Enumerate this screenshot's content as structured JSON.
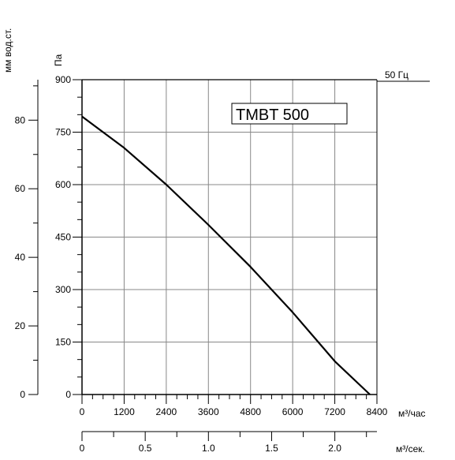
{
  "chart_data": {
    "type": "line",
    "title": "TMBT 500",
    "frequency_label": "50 Гц",
    "x_unit_primary": "м³/час",
    "x_unit_secondary": "м³/сек.",
    "y_unit_left": "мм вод.ст.",
    "y_unit_right": "Па",
    "x_ticks": [
      "0",
      "1200",
      "2400",
      "3600",
      "4800",
      "6000",
      "7200",
      "8400"
    ],
    "x_range": [
      0,
      8400
    ],
    "x2_ticks": [
      "0",
      "0.5",
      "1.0",
      "1.5",
      "2.0"
    ],
    "x2_range": [
      0,
      2.333
    ],
    "y_ticks": [
      "0",
      "150",
      "300",
      "450",
      "600",
      "750",
      "900"
    ],
    "y_range": [
      0,
      900
    ],
    "y2_ticks": [
      "0",
      "20",
      "40",
      "60",
      "80"
    ],
    "y2_range": [
      0,
      91.8
    ],
    "grid": true,
    "series": [
      {
        "x": [
          0,
          1200,
          2400,
          3600,
          4800,
          6000,
          7200,
          8200
        ],
        "y": [
          795,
          705,
          600,
          485,
          365,
          235,
          95,
          0
        ]
      }
    ]
  }
}
